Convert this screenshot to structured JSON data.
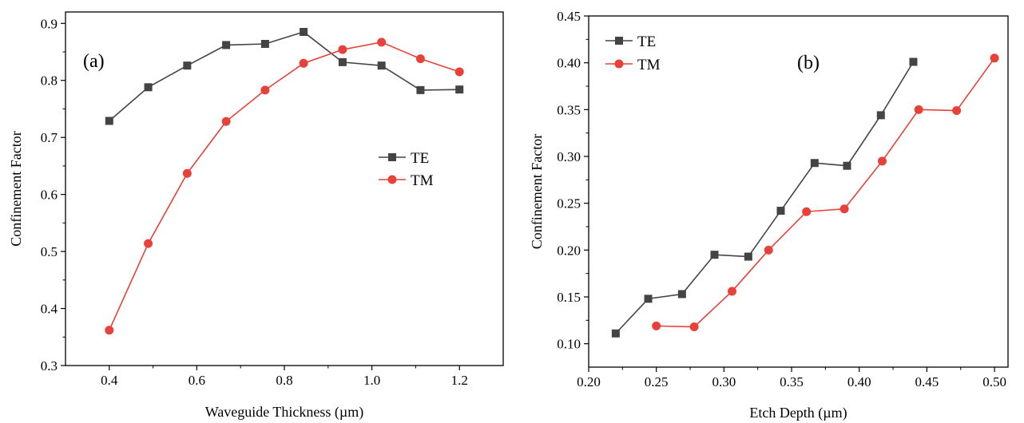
{
  "chart_data": [
    {
      "type": "line",
      "panel_label": "(a)",
      "title": "",
      "xlabel": "Waveguide Thickness (µm)",
      "ylabel": "Confinement Factor",
      "xlim": [
        0.3,
        1.3
      ],
      "ylim": [
        0.3,
        0.92
      ],
      "xticks": [
        0.4,
        0.6,
        0.8,
        1.0,
        1.2
      ],
      "xtick_labels": [
        "0.4",
        "0.6",
        "0.8",
        "1.0",
        "1.2"
      ],
      "yticks": [
        0.3,
        0.4,
        0.5,
        0.6,
        0.7,
        0.8,
        0.9
      ],
      "ytick_labels": [
        "0.3",
        "0.4",
        "0.5",
        "0.6",
        "0.7",
        "0.8",
        "0.9"
      ],
      "grid": false,
      "legend": "center-right",
      "series": [
        {
          "name": "TE",
          "color": "#444444",
          "marker": "square",
          "x": [
            0.4,
            0.489,
            0.578,
            0.667,
            0.756,
            0.844,
            0.933,
            1.022,
            1.111,
            1.2
          ],
          "y": [
            0.729,
            0.788,
            0.826,
            0.862,
            0.864,
            0.885,
            0.832,
            0.826,
            0.783,
            0.784
          ]
        },
        {
          "name": "TM",
          "color": "#e8413a",
          "marker": "circle",
          "x": [
            0.4,
            0.489,
            0.578,
            0.667,
            0.756,
            0.844,
            0.933,
            1.022,
            1.111,
            1.2
          ],
          "y": [
            0.362,
            0.514,
            0.637,
            0.728,
            0.783,
            0.83,
            0.854,
            0.867,
            0.838,
            0.815
          ]
        }
      ]
    },
    {
      "type": "line",
      "panel_label": "(b)",
      "title": "",
      "xlabel": "Etch Depth (µm)",
      "ylabel": "Confinement Factor",
      "xlim": [
        0.2,
        0.51
      ],
      "ylim": [
        0.075,
        0.45
      ],
      "xticks": [
        0.2,
        0.25,
        0.3,
        0.35,
        0.4,
        0.45,
        0.5
      ],
      "xtick_labels": [
        "0.20",
        "0.25",
        "0.30",
        "0.35",
        "0.40",
        "0.45",
        "0.50"
      ],
      "yticks": [
        0.1,
        0.15,
        0.2,
        0.25,
        0.3,
        0.35,
        0.4,
        0.45
      ],
      "ytick_labels": [
        "0.10",
        "0.15",
        "0.20",
        "0.25",
        "0.30",
        "0.35",
        "0.40",
        "0.45"
      ],
      "grid": false,
      "legend": "top-left",
      "series": [
        {
          "name": "TE",
          "color": "#444444",
          "marker": "square",
          "x": [
            0.22,
            0.244,
            0.269,
            0.293,
            0.318,
            0.342,
            0.367,
            0.391,
            0.416,
            0.44
          ],
          "y": [
            0.111,
            0.148,
            0.153,
            0.195,
            0.193,
            0.242,
            0.293,
            0.29,
            0.344,
            0.401
          ]
        },
        {
          "name": "TM",
          "color": "#e8413a",
          "marker": "circle",
          "x": [
            0.25,
            0.278,
            0.306,
            0.333,
            0.361,
            0.389,
            0.417,
            0.444,
            0.472,
            0.5
          ],
          "y": [
            0.119,
            0.118,
            0.156,
            0.2,
            0.241,
            0.244,
            0.295,
            0.35,
            0.349,
            0.405
          ]
        }
      ]
    }
  ]
}
